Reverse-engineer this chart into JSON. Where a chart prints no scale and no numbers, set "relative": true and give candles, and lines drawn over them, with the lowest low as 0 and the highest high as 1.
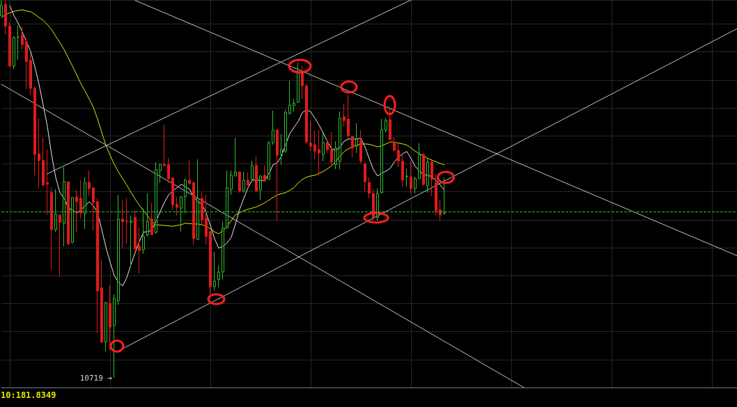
{
  "chart_data": {
    "type": "candlestick",
    "relative": true,
    "grid": true,
    "tick_labels": false,
    "categories": [
      null,
      null,
      null,
      null,
      null,
      null,
      null,
      null,
      null,
      null,
      null,
      null,
      null,
      null,
      null,
      null,
      null,
      null,
      null,
      null,
      null,
      null,
      null,
      null,
      null,
      null,
      null,
      null,
      null,
      null,
      null,
      null,
      null,
      null,
      null,
      null,
      null,
      null,
      null,
      null,
      null,
      null,
      null,
      null,
      null,
      null,
      null,
      null,
      null,
      null,
      null,
      null,
      null,
      null,
      null,
      null,
      null,
      null,
      null,
      null,
      null,
      null,
      null,
      null,
      null,
      null,
      null,
      null,
      null,
      null,
      null,
      null,
      null,
      null,
      null,
      null,
      null,
      null,
      null,
      null,
      null,
      null,
      null,
      null,
      null,
      null,
      null,
      null,
      null,
      null,
      null,
      null,
      null,
      null,
      null,
      null,
      null,
      null,
      null,
      null,
      null,
      null,
      null,
      null,
      null,
      null,
      null,
      null,
      null,
      null,
      null,
      null,
      null,
      null,
      null,
      null,
      null,
      null,
      null,
      null,
      null,
      null,
      null,
      null,
      null,
      null,
      null,
      null,
      null,
      null,
      null,
      null,
      null,
      null,
      null,
      null,
      null,
      null,
      null,
      null,
      null,
      null,
      null,
      null,
      null,
      null,
      null,
      null,
      null,
      null,
      null,
      null,
      null,
      null,
      null,
      null,
      null,
      null,
      null,
      null,
      null,
      null,
      null,
      null,
      null,
      null,
      null,
      null,
      null,
      null,
      null,
      null,
      null,
      null,
      null,
      null,
      null
    ],
    "ohlc": [
      [
        0.959,
        1,
        0.958,
        0.985
      ],
      [
        0.989,
        1,
        0.908,
        0.931
      ],
      [
        0.931,
        0.941,
        0.823,
        0.825
      ],
      [
        0.825,
        0.904,
        0.818,
        0.901
      ],
      [
        0.901,
        0.932,
        0.842,
        0.902
      ],
      [
        0.908,
        0.929,
        0.869,
        0.882
      ],
      [
        0.89,
        0.895,
        0.764,
        0.837
      ],
      [
        0.84,
        0.858,
        0.748,
        0.766
      ],
      [
        0.766,
        0.77,
        0.536,
        0.591
      ],
      [
        0.593,
        0.687,
        0.501,
        0.575
      ],
      [
        0.575,
        0.635,
        0.506,
        0.51
      ],
      [
        0.516,
        0.604,
        0.431,
        0.512
      ],
      [
        0.49,
        0.503,
        0.287,
        0.392
      ],
      [
        0.392,
        0.499,
        0.385,
        0.433
      ],
      [
        0.431,
        0.431,
        0.267,
        0.411
      ],
      [
        0.409,
        0.558,
        0.348,
        0.519
      ],
      [
        0.519,
        0.519,
        0.352,
        0.354
      ],
      [
        0.359,
        0.477,
        0.355,
        0.477
      ],
      [
        0.479,
        0.497,
        0.385,
        0.466
      ],
      [
        0.475,
        0.523,
        0.422,
        0.436
      ],
      [
        0.435,
        0.53,
        0.394,
        0.517
      ],
      [
        0.517,
        0.549,
        0.481,
        0.501
      ],
      [
        0.503,
        0.503,
        0.389,
        0.464
      ],
      [
        0.466,
        0.475,
        0.118,
        0.23
      ],
      [
        0.238,
        0.313,
        0.092,
        0.094
      ],
      [
        0.094,
        0.201,
        0.07,
        0.199
      ],
      [
        0.197,
        0.245,
        0.072,
        0.134
      ],
      [
        0.138,
        0.221,
        0,
        0.21
      ],
      [
        0.204,
        0.484,
        0.193,
        0.42
      ],
      [
        0.42,
        0.47,
        0.343,
        0.413
      ],
      [
        0.414,
        0.475,
        0.355,
        0.413
      ],
      [
        0.411,
        0.429,
        0.295,
        0.414
      ],
      [
        0.425,
        0.444,
        0.339,
        0.341
      ],
      [
        0.348,
        0.398,
        0.276,
        0.337
      ],
      [
        0.339,
        0.448,
        0.328,
        0.374
      ],
      [
        0.378,
        0.488,
        0.374,
        0.414
      ],
      [
        0.42,
        0.462,
        0.378,
        0.379
      ],
      [
        0.385,
        0.571,
        0.381,
        0.551
      ],
      [
        0.549,
        0.567,
        0.516,
        0.564
      ],
      [
        0.565,
        0.669,
        0.558,
        0.562
      ],
      [
        0.564,
        0.582,
        0.516,
        0.527
      ],
      [
        0.529,
        0.529,
        0.444,
        0.457
      ],
      [
        0.459,
        0.479,
        0.429,
        0.451
      ],
      [
        0.449,
        0.481,
        0.387,
        0.479
      ],
      [
        0.479,
        0.527,
        0.435,
        0.523
      ],
      [
        0.523,
        0.576,
        0.512,
        0.514
      ],
      [
        0.517,
        0.517,
        0.352,
        0.368
      ],
      [
        0.366,
        0.578,
        0.366,
        0.475
      ],
      [
        0.475,
        0.49,
        0.405,
        0.418
      ],
      [
        0.422,
        0.484,
        0.352,
        0.374
      ],
      [
        0.387,
        0.387,
        0.221,
        0.241
      ],
      [
        0.241,
        0.333,
        0.23,
        0.256
      ],
      [
        0.26,
        0.297,
        0.239,
        0.28
      ],
      [
        0.28,
        0.413,
        0.26,
        0.396
      ],
      [
        0.396,
        0.549,
        0.396,
        0.503
      ],
      [
        0.499,
        0.549,
        0.484,
        0.536
      ],
      [
        0.534,
        0.635,
        0.534,
        0.545
      ],
      [
        0.545,
        0.545,
        0.49,
        0.494
      ],
      [
        0.495,
        0.545,
        0.49,
        0.523
      ],
      [
        0.523,
        0.543,
        0.508,
        0.51
      ],
      [
        0.525,
        0.575,
        0.517,
        0.562
      ],
      [
        0.562,
        0.586,
        0.494,
        0.494
      ],
      [
        0.497,
        0.536,
        0.471,
        0.534
      ],
      [
        0.536,
        0.562,
        0.521,
        0.521
      ],
      [
        0.525,
        0.626,
        0.525,
        0.622
      ],
      [
        0.622,
        0.707,
        0.617,
        0.656
      ],
      [
        0.656,
        0.657,
        0.416,
        0.589
      ],
      [
        0.591,
        0.645,
        0.564,
        0.604
      ],
      [
        0.6,
        0.709,
        0.595,
        0.702
      ],
      [
        0.7,
        0.786,
        0.696,
        0.722
      ],
      [
        0.72,
        0.737,
        0.704,
        0.727
      ],
      [
        0.729,
        0.834,
        0.729,
        0.807
      ],
      [
        0.81,
        0.825,
        0.738,
        0.773
      ],
      [
        0.773,
        0.777,
        0.619,
        0.624
      ],
      [
        0.621,
        0.68,
        0.6,
        0.613
      ],
      [
        0.617,
        0.654,
        0.58,
        0.6
      ],
      [
        0.604,
        0.656,
        0.534,
        0.595
      ],
      [
        0.591,
        0.648,
        0.573,
        0.622
      ],
      [
        0.622,
        0.63,
        0.595,
        0.604
      ],
      [
        0.604,
        0.65,
        0.564,
        0.571
      ],
      [
        0.564,
        0.626,
        0.552,
        0.608
      ],
      [
        0.573,
        0.705,
        0.552,
        0.687
      ],
      [
        0.691,
        0.726,
        0.665,
        0.681
      ],
      [
        0.685,
        0.748,
        0.632,
        0.641
      ],
      [
        0.639,
        0.639,
        0.582,
        0.608
      ],
      [
        0.613,
        0.674,
        0.595,
        0.632
      ],
      [
        0.628,
        0.656,
        0.567,
        0.573
      ],
      [
        0.567,
        0.567,
        0.494,
        0.519
      ],
      [
        0.517,
        0.53,
        0.475,
        0.488
      ],
      [
        0.488,
        0.501,
        0.416,
        0.424
      ],
      [
        0.424,
        0.501,
        0.416,
        0.488
      ],
      [
        0.49,
        0.685,
        0.488,
        0.656
      ],
      [
        0.656,
        0.687,
        0.65,
        0.681
      ],
      [
        0.683,
        0.718,
        0.63,
        0.63
      ],
      [
        0.624,
        0.637,
        0.599,
        0.602
      ],
      [
        0.602,
        0.619,
        0.558,
        0.573
      ],
      [
        0.573,
        0.595,
        0.506,
        0.523
      ],
      [
        0.532,
        0.553,
        0.506,
        0.534
      ],
      [
        0.532,
        0.573,
        0.488,
        0.501
      ],
      [
        0.501,
        0.532,
        0.488,
        0.527
      ],
      [
        0.527,
        0.621,
        0.527,
        0.591
      ],
      [
        0.591,
        0.595,
        0.508,
        0.512
      ],
      [
        0.508,
        0.582,
        0.49,
        0.571
      ],
      [
        0.571,
        0.576,
        0.481,
        0.525
      ],
      [
        0.517,
        0.54,
        0.429,
        0.442
      ],
      [
        0.444,
        0.47,
        0.414,
        0.431
      ],
      [
        0.435,
        0.529,
        0.433,
        0.436
      ],
      null,
      null,
      null,
      null,
      null,
      null,
      null,
      null,
      null,
      null,
      null,
      null,
      null,
      null,
      null,
      null,
      null,
      null,
      null,
      null,
      null,
      null,
      null,
      null,
      null,
      null,
      null,
      null,
      null,
      null,
      null,
      null,
      null,
      null,
      null,
      null,
      null,
      null,
      null,
      null,
      null,
      null,
      null,
      null,
      null,
      null,
      null,
      null,
      null,
      null,
      null,
      null,
      null,
      null,
      null,
      null,
      null,
      null,
      null,
      null,
      null,
      null,
      null,
      null,
      null,
      null,
      null,
      null,
      null,
      null
    ],
    "colors": [
      "#2fbf2f",
      "#e01b1b",
      "#e01b1b",
      "#2fbf2f",
      "#2fbf2f",
      "#e01b1b",
      "#e01b1b",
      "#e01b1b",
      "#e01b1b",
      "#e01b1b",
      "#e01b1b",
      "#e01b1b",
      "#e01b1b",
      "#2fbf2f",
      "#e01b1b",
      "#2fbf2f",
      "#e01b1b",
      "#2fbf2f",
      "#e01b1b",
      "#e01b1b",
      "#2fbf2f",
      "#e01b1b",
      "#e01b1b",
      "#e01b1b",
      "#e01b1b",
      "#2fbf2f",
      "#e01b1b",
      "#2fbf2f",
      "#2fbf2f",
      "#e01b1b",
      "#e01b1b",
      "#2fbf2f",
      "#e01b1b",
      "#e01b1b",
      "#2fbf2f",
      "#2fbf2f",
      "#e01b1b",
      "#2fbf2f",
      "#2fbf2f",
      "#e01b1b",
      "#e01b1b",
      "#e01b1b",
      "#e01b1b",
      "#2fbf2f",
      "#2fbf2f",
      "#e01b1b",
      "#e01b1b",
      "#2fbf2f",
      "#e01b1b",
      "#e01b1b",
      "#e01b1b",
      "#2fbf2f",
      "#2fbf2f",
      "#2fbf2f",
      "#2fbf2f",
      "#2fbf2f",
      "#2fbf2f",
      "#e01b1b",
      "#2fbf2f",
      "#e01b1b",
      "#2fbf2f",
      "#e01b1b",
      "#2fbf2f",
      "#e01b1b",
      "#2fbf2f",
      "#2fbf2f",
      "#e01b1b",
      "#2fbf2f",
      "#2fbf2f",
      "#2fbf2f",
      "#2fbf2f",
      "#2fbf2f",
      "#e01b1b",
      "#e01b1b",
      "#e01b1b",
      "#e01b1b",
      "#e01b1b",
      "#2fbf2f",
      "#e01b1b",
      "#e01b1b",
      "#2fbf2f",
      "#2fbf2f",
      "#e01b1b",
      "#e01b1b",
      "#e01b1b",
      "#2fbf2f",
      "#e01b1b",
      "#e01b1b",
      "#e01b1b",
      "#e01b1b",
      "#2fbf2f",
      "#2fbf2f",
      "#2fbf2f",
      "#e01b1b",
      "#e01b1b",
      "#e01b1b",
      "#e01b1b",
      "#2fbf2f",
      "#e01b1b",
      "#2fbf2f",
      "#2fbf2f",
      "#e01b1b",
      "#2fbf2f",
      "#e01b1b",
      "#e01b1b",
      "#e01b1b",
      "#2fbf2f",
      null,
      null,
      null,
      null,
      null,
      null,
      null,
      null,
      null,
      null,
      null,
      null,
      null,
      null,
      null,
      null,
      null,
      null,
      null,
      null,
      null,
      null,
      null,
      null,
      null,
      null,
      null,
      null,
      null,
      null,
      null,
      null,
      null,
      null,
      null,
      null,
      null,
      null,
      null,
      null,
      null,
      null,
      null,
      null,
      null,
      null,
      null,
      null,
      null,
      null,
      null,
      null,
      null,
      null,
      null,
      null,
      null,
      null,
      null,
      null,
      null,
      null,
      null,
      null,
      null,
      null,
      null,
      null,
      null,
      null
    ],
    "series": [
      {
        "type": "line",
        "color": "#e8e8e8",
        "values": [
          null,
          null,
          0.985,
          0.959,
          0.939,
          0.915,
          0.89,
          0.864,
          0.823,
          0.777,
          0.722,
          0.665,
          0.591,
          0.53,
          0.49,
          0.475,
          0.449,
          0.444,
          0.436,
          0.444,
          0.455,
          0.466,
          0.455,
          0.438,
          0.392,
          0.346,
          0.306,
          0.271,
          0.252,
          0.243,
          0.265,
          0.3,
          0.331,
          0.361,
          0.385,
          0.387,
          0.39,
          0.414,
          0.44,
          0.464,
          0.484,
          0.494,
          0.503,
          0.512,
          0.506,
          0.499,
          0.479,
          0.466,
          0.459,
          0.436,
          0.403,
          0.368,
          0.343,
          0.348,
          0.357,
          0.372,
          0.407,
          0.446,
          0.475,
          0.503,
          0.523,
          0.523,
          0.523,
          0.521,
          0.54,
          0.564,
          0.569,
          0.586,
          0.617,
          0.646,
          0.663,
          0.678,
          0.702,
          0.709,
          0.704,
          0.687,
          0.669,
          0.648,
          0.626,
          0.606,
          0.602,
          0.61,
          0.626,
          0.632,
          0.632,
          0.632,
          0.634,
          0.611,
          0.58,
          0.551,
          0.534,
          0.541,
          0.547,
          0.554,
          0.571,
          0.584,
          0.593,
          0.599,
          0.58,
          0.56,
          0.547,
          0.538,
          0.536,
          0.532,
          0.523,
          0.51,
          0.497,
          null,
          null,
          null,
          null,
          null,
          null,
          null,
          null,
          null,
          null,
          null,
          null,
          null,
          null,
          null,
          null,
          null,
          null,
          null,
          null,
          null,
          null,
          null,
          null,
          null,
          null,
          null,
          null,
          null,
          null,
          null,
          null,
          null,
          null,
          null,
          null,
          null,
          null,
          null,
          null,
          null,
          null,
          null,
          null,
          null,
          null,
          null,
          null,
          null,
          null,
          null,
          null,
          null,
          null,
          null,
          null,
          null,
          null,
          null,
          null,
          null,
          null,
          null,
          null,
          null,
          null,
          null,
          null,
          null,
          null
        ]
      },
      {
        "type": "line",
        "color": "#e5e500",
        "values": [
          0.954,
          0.961,
          0.966,
          0.97,
          0.972,
          0.974,
          0.971,
          0.969,
          0.962,
          0.954,
          0.946,
          0.935,
          0.922,
          0.904,
          0.887,
          0.869,
          0.847,
          0.825,
          0.802,
          0.779,
          0.759,
          0.738,
          0.716,
          0.685,
          0.65,
          0.615,
          0.589,
          0.565,
          0.545,
          0.527,
          0.51,
          0.491,
          0.473,
          0.457,
          0.442,
          0.428,
          0.414,
          0.405,
          0.404,
          0.403,
          0.402,
          0.401,
          0.403,
          0.405,
          0.409,
          0.408,
          0.407,
          0.407,
          0.405,
          0.401,
          0.394,
          0.386,
          0.381,
          0.389,
          0.401,
          0.416,
          0.431,
          0.437,
          0.442,
          0.446,
          0.449,
          0.452,
          0.457,
          0.463,
          0.47,
          0.477,
          0.484,
          0.487,
          0.49,
          0.496,
          0.503,
          0.516,
          0.525,
          0.531,
          0.534,
          0.536,
          0.541,
          0.546,
          0.553,
          0.561,
          0.573,
          0.586,
          0.599,
          0.606,
          0.611,
          0.616,
          0.618,
          0.619,
          0.618,
          0.615,
          0.611,
          0.614,
          0.619,
          0.624,
          0.624,
          0.621,
          0.619,
          0.616,
          0.608,
          0.6,
          0.593,
          0.587,
          0.581,
          0.576,
          0.572,
          0.567,
          0.564,
          null,
          null,
          null,
          null,
          null,
          null,
          null,
          null,
          null,
          null,
          null,
          null,
          null,
          null,
          null,
          null,
          null,
          null,
          null,
          null,
          null,
          null,
          null,
          null,
          null,
          null,
          null,
          null,
          null,
          null,
          null,
          null,
          null,
          null,
          null,
          null,
          null,
          null,
          null,
          null,
          null,
          null,
          null,
          null,
          null,
          null,
          null,
          null,
          null,
          null,
          null,
          null,
          null,
          null,
          null,
          null,
          null,
          null,
          null,
          null,
          null,
          null,
          null,
          null,
          null,
          null,
          null,
          null,
          null,
          null
        ]
      },
      {
        "type": "line",
        "color": "#c4c4c4",
        "values": [
          0.777,
          null,
          null,
          null,
          null,
          null,
          null,
          null,
          null,
          null,
          null,
          null,
          null,
          null,
          null,
          null,
          null,
          null,
          null,
          null,
          null,
          null,
          null,
          null,
          null,
          null,
          null,
          null,
          null,
          null,
          null,
          null,
          null,
          null,
          null,
          null,
          null,
          null,
          null,
          null,
          null,
          null,
          null,
          null,
          null,
          null,
          null,
          null,
          null,
          null,
          null,
          null,
          null,
          null,
          null,
          null,
          null,
          null,
          null,
          null,
          null,
          null,
          null,
          null,
          null,
          null,
          null,
          null,
          null,
          null,
          null,
          null,
          null,
          null,
          null,
          null,
          null,
          null,
          null,
          null,
          null,
          null,
          null,
          null,
          null,
          null,
          null,
          null,
          null,
          null,
          null,
          null,
          null,
          null,
          null,
          null,
          null,
          null,
          null,
          null,
          null,
          null,
          null,
          null,
          null,
          null,
          null,
          null,
          null,
          null,
          null,
          null,
          null,
          null,
          null,
          null,
          null,
          null,
          null,
          null,
          null,
          null,
          null,
          null,
          null,
          -0.026,
          null,
          null,
          null,
          null,
          null,
          null,
          null,
          null,
          null,
          null,
          null,
          null,
          null,
          null,
          null,
          null,
          null,
          null,
          null,
          null,
          null,
          null,
          null,
          null,
          null,
          null,
          null,
          null,
          null,
          null,
          null,
          null,
          null,
          null,
          null,
          null,
          null,
          null,
          null,
          null,
          null,
          null,
          null,
          null,
          null,
          null,
          null,
          null,
          null,
          null,
          null
        ]
      },
      {
        "type": "line",
        "color": "#c4c4c4",
        "values": [
          null,
          null,
          null,
          null,
          null,
          null,
          null,
          null,
          null,
          null,
          null,
          null,
          null,
          null,
          null,
          null,
          null,
          null,
          null,
          null,
          null,
          null,
          null,
          null,
          null,
          null,
          null,
          null,
          null,
          null,
          null,
          null,
          0.999,
          null,
          null,
          null,
          null,
          null,
          null,
          null,
          null,
          null,
          null,
          null,
          null,
          null,
          null,
          null,
          null,
          null,
          null,
          null,
          null,
          null,
          null,
          null,
          null,
          null,
          null,
          null,
          null,
          null,
          null,
          null,
          null,
          null,
          null,
          null,
          null,
          null,
          null,
          null,
          null,
          null,
          null,
          null,
          null,
          null,
          null,
          null,
          null,
          null,
          null,
          null,
          null,
          null,
          null,
          null,
          null,
          null,
          null,
          null,
          null,
          null,
          null,
          null,
          null,
          null,
          null,
          null,
          null,
          null,
          null,
          null,
          null,
          null,
          null,
          null,
          null,
          null,
          null,
          null,
          null,
          null,
          null,
          null,
          null,
          null,
          null,
          null,
          null,
          null,
          null,
          null,
          null,
          null,
          null,
          null,
          null,
          null,
          null,
          null,
          null,
          null,
          null,
          null,
          null,
          null,
          null,
          null,
          null,
          null,
          null,
          null,
          null,
          null,
          null,
          null,
          null,
          null,
          null,
          null,
          null,
          null,
          null,
          null,
          null,
          null,
          null,
          null,
          null,
          null,
          null,
          null,
          null,
          null,
          null,
          null,
          null,
          null,
          null,
          null,
          null,
          null,
          null,
          null,
          0.323
        ]
      },
      {
        "type": "line",
        "color": "#c4c4c4",
        "values": [
          null,
          null,
          null,
          null,
          null,
          null,
          null,
          null,
          null,
          null,
          null,
          0.54,
          null,
          null,
          null,
          null,
          null,
          null,
          null,
          null,
          null,
          null,
          null,
          null,
          null,
          null,
          null,
          null,
          null,
          null,
          null,
          null,
          null,
          null,
          null,
          null,
          null,
          null,
          null,
          null,
          null,
          null,
          null,
          null,
          null,
          null,
          null,
          null,
          null,
          null,
          null,
          null,
          null,
          null,
          null,
          null,
          null,
          null,
          null,
          null,
          null,
          null,
          null,
          null,
          null,
          null,
          null,
          null,
          null,
          null,
          null,
          null,
          null,
          null,
          null,
          null,
          null,
          null,
          null,
          null,
          null,
          null,
          null,
          null,
          null,
          null,
          null,
          null,
          null,
          null,
          null,
          null,
          null,
          null,
          null,
          null,
          null,
          null,
          1,
          null,
          null,
          null,
          null,
          null,
          null,
          null,
          null,
          null,
          null,
          null,
          null,
          null,
          null,
          null,
          null,
          null,
          null,
          null,
          null,
          null,
          null,
          null,
          null,
          null,
          null,
          null,
          null,
          null,
          null,
          null,
          null,
          null,
          null,
          null,
          null,
          null,
          null,
          null,
          null,
          null,
          null,
          null,
          null,
          null,
          null,
          null,
          null,
          null,
          null,
          null,
          null,
          null,
          null,
          null,
          null,
          null,
          null,
          null,
          null,
          null,
          null,
          null,
          null,
          null,
          null,
          null,
          null,
          null,
          null,
          null,
          null,
          null,
          null,
          null,
          null,
          null,
          null
        ]
      },
      {
        "type": "line",
        "color": "#c4c4c4",
        "values": [
          null,
          null,
          null,
          null,
          null,
          null,
          null,
          null,
          null,
          null,
          null,
          null,
          null,
          null,
          null,
          null,
          null,
          null,
          null,
          null,
          null,
          null,
          null,
          null,
          null,
          null,
          null,
          null,
          0.071,
          null,
          null,
          null,
          null,
          null,
          null,
          null,
          null,
          null,
          null,
          null,
          null,
          null,
          null,
          null,
          null,
          null,
          null,
          null,
          null,
          null,
          null,
          null,
          null,
          null,
          null,
          null,
          null,
          null,
          null,
          null,
          null,
          null,
          null,
          null,
          null,
          null,
          null,
          null,
          null,
          null,
          null,
          null,
          null,
          null,
          null,
          null,
          null,
          null,
          null,
          null,
          null,
          null,
          null,
          null,
          null,
          null,
          null,
          null,
          null,
          null,
          null,
          null,
          null,
          null,
          null,
          null,
          null,
          null,
          null,
          null,
          null,
          null,
          null,
          null,
          null,
          null,
          null,
          null,
          null,
          null,
          null,
          null,
          null,
          null,
          null,
          null,
          null,
          null,
          null,
          null,
          null,
          null,
          null,
          null,
          null,
          null,
          null,
          null,
          null,
          null,
          null,
          null,
          null,
          null,
          null,
          null,
          null,
          null,
          null,
          null,
          null,
          null,
          null,
          null,
          null,
          null,
          null,
          null,
          null,
          null,
          null,
          null,
          null,
          null,
          null,
          null,
          null,
          null,
          null,
          null,
          null,
          null,
          null,
          null,
          null,
          null,
          null,
          null,
          null,
          null,
          null,
          null,
          null,
          null,
          null,
          null,
          0.924
        ]
      }
    ],
    "ref_lines": [
      {
        "axis": "y",
        "value": 0.436,
        "color": "#2fbf2f",
        "line_style": "dashed"
      }
    ],
    "annotations": [
      "10719 →",
      "10:181.8349"
    ]
  }
}
